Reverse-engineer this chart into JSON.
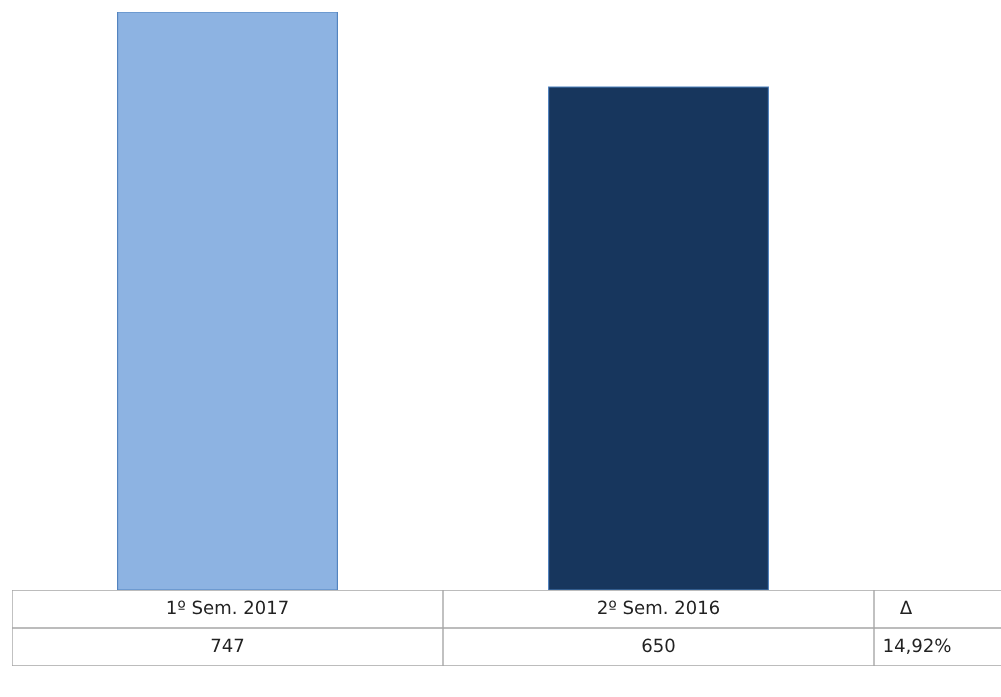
{
  "chart_data": {
    "type": "bar",
    "categories": [
      "1º Sem. 2017",
      "2º Sem. 2016"
    ],
    "values": [
      747,
      650
    ],
    "colors": [
      "#8db3e2",
      "#17365d"
    ],
    "data_labels": true,
    "annotations": [
      "Δ",
      "14,92%"
    ]
  }
}
